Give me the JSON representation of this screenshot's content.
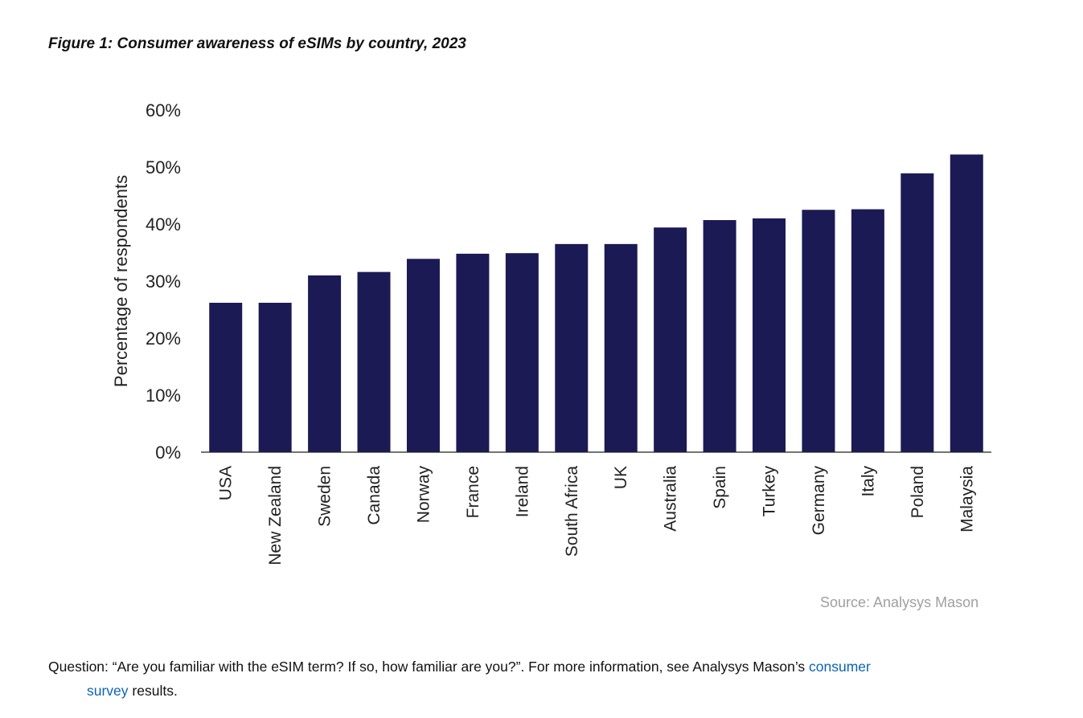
{
  "title": "Figure 1: Consumer awareness of eSIMs by country, 2023",
  "source": "Source: Analysys Mason",
  "note": {
    "text1": "Question: “Are you familiar with the eSIM term? If so, how familiar are you?”. For more information, see Analysys Mason’s ",
    "link1": "consumer",
    "link2": "survey",
    "text2": " results."
  },
  "colors": {
    "bar": "#1b1a55",
    "link": "#0b63b6"
  },
  "chart_data": {
    "type": "bar",
    "title": "Figure 1: Consumer awareness of eSIMs by country, 2023",
    "xlabel": "",
    "ylabel": "Percentage of respondents",
    "ylim": [
      0,
      60
    ],
    "yticks": [
      "0%",
      "10%",
      "20%",
      "30%",
      "40%",
      "50%",
      "60%"
    ],
    "grid": false,
    "categories": [
      "USA",
      "New Zealand",
      "Sweden",
      "Canada",
      "Norway",
      "France",
      "Ireland",
      "South Africa",
      "UK",
      "Australia",
      "Spain",
      "Turkey",
      "Germany",
      "Italy",
      "Poland",
      "Malaysia"
    ],
    "values": [
      26.2,
      26.2,
      31.0,
      31.6,
      33.9,
      34.8,
      34.9,
      36.5,
      36.5,
      39.4,
      40.7,
      41.0,
      42.5,
      42.6,
      48.9,
      52.2
    ]
  }
}
